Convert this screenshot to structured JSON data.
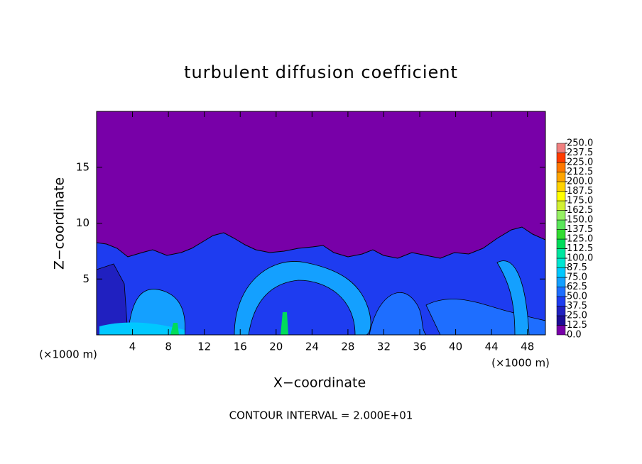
{
  "chart_data": {
    "type": "contour",
    "title": "turbulent diffusion coefficient",
    "xlabel": "X−coordinate",
    "ylabel": "Z−coordinate",
    "x_unit_label": "(×1000 m)",
    "y_unit_label": "(×1000 m)",
    "annotation": "CONTOUR INTERVAL = 2.000E+01",
    "xlim": [
      0,
      50
    ],
    "ylim": [
      0,
      20
    ],
    "xticks": [
      4,
      8,
      12,
      16,
      20,
      24,
      28,
      32,
      36,
      40,
      44,
      48
    ],
    "yticks": [
      5,
      10,
      15
    ],
    "colorbar": {
      "ticks": [
        {
          "value": 0,
          "label": "0.0"
        },
        12.5,
        25,
        37.5,
        50,
        62.5,
        75,
        87.5,
        100,
        112.5,
        125,
        137.5,
        150,
        162.5,
        175,
        187.5,
        200,
        212.5,
        225,
        237.5,
        250
      ],
      "tick_labels": [
        "0.0",
        "12.5",
        "25.0",
        "37.5",
        "50.0",
        "62.5",
        "75.0",
        "87.5",
        "100.0",
        "112.5",
        "125.0",
        "137.5",
        "150.0",
        "162.5",
        "175.0",
        "187.5",
        "200.0",
        "212.5",
        "225.0",
        "237.5",
        "250.0"
      ],
      "colors": [
        "#7800a8",
        "#1c0c96",
        "#2020c0",
        "#1e3cf0",
        "#1e6eff",
        "#14a0ff",
        "#00c8ff",
        "#00e6d2",
        "#00e6a0",
        "#00dc5a",
        "#32dc32",
        "#5ae65a",
        "#96f064",
        "#d2f032",
        "#ffff00",
        "#ffd200",
        "#ffa500",
        "#ff7800",
        "#ff3c00",
        "#f08080"
      ]
    }
  }
}
